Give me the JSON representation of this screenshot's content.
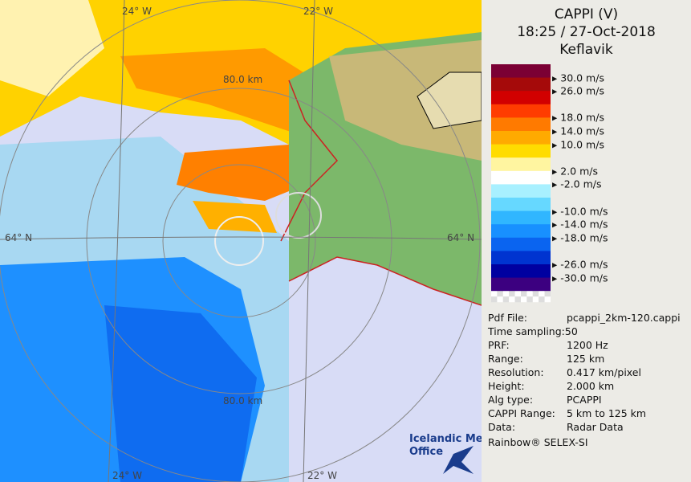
{
  "map": {
    "labels": {
      "lon_top_left": "24° W",
      "lon_top_right": "22° W",
      "lat_left": "64° N",
      "lat_right": "64° N",
      "ring_top": "80.0 km",
      "ring_bottom": "80.0 km",
      "lon_bottom_left": "24° W",
      "lon_bottom_right": "22° W"
    },
    "logo": [
      "Icelandic Met",
      "Office"
    ]
  },
  "header": {
    "title": "CAPPI (V)",
    "time": "18:25 / 27-Oct-2018",
    "site": "Keflavik"
  },
  "legend": {
    "colors": [
      "#7b0034",
      "#a50a0a",
      "#d20000",
      "#ff3c00",
      "#ff7a00",
      "#ffaa00",
      "#ffdc00",
      "#fff5a0",
      "#ffffff",
      "#a8f0ff",
      "#66d8ff",
      "#30b6ff",
      "#1890ff",
      "#0a64f0",
      "#0034d0",
      "#0000a0",
      "#3c0080"
    ],
    "labels": [
      "30.0 m/s",
      "26.0 m/s",
      "18.0 m/s",
      "14.0 m/s",
      "10.0 m/s",
      "2.0 m/s",
      "-2.0 m/s",
      "-10.0 m/s",
      "-14.0 m/s",
      "-18.0 m/s",
      "-26.0 m/s",
      "-30.0 m/s"
    ]
  },
  "info": {
    "rows": [
      [
        "Pdf File:",
        "pcappi_2km-120.cappi"
      ],
      [
        "Time sampling:50"
      ],
      [
        "PRF:",
        "1200 Hz"
      ],
      [
        "Range:",
        "125 km"
      ],
      [
        "Resolution:",
        "0.417 km/pixel"
      ],
      [
        "Height:",
        "2.000 km"
      ],
      [
        "Alg type:",
        "PCAPPI"
      ],
      [
        "CAPPI Range:",
        "5 km to 125 km"
      ],
      [
        "Data:",
        "Radar Data"
      ]
    ],
    "footer": "Rainbow® SELEX-SI"
  }
}
